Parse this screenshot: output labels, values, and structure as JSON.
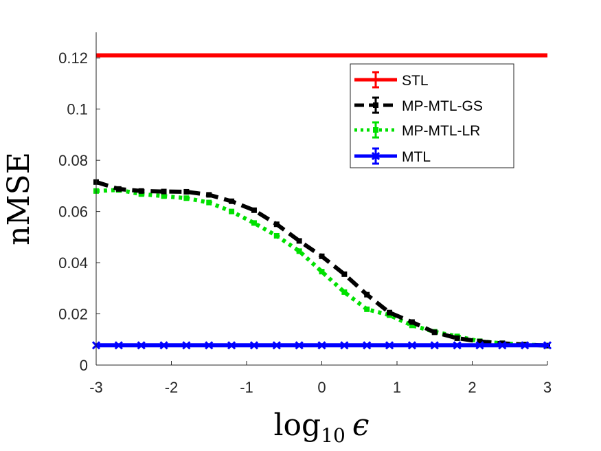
{
  "chart_data": {
    "type": "line",
    "title": "",
    "xlabel": "log10 ϵ",
    "xlabel_parts": {
      "base": "log",
      "sub": "10",
      "symbol": "ϵ"
    },
    "ylabel": "nMSE",
    "xlim": [
      -3,
      3
    ],
    "ylim": [
      0,
      0.13
    ],
    "xticks": [
      -3,
      -2,
      -1,
      0,
      1,
      2,
      3
    ],
    "xtick_labels": [
      "-3",
      "-2",
      "-1",
      "0",
      "1",
      "2",
      "3"
    ],
    "yticks": [
      0,
      0.02,
      0.04,
      0.06,
      0.08,
      0.1,
      0.12
    ],
    "ytick_labels": [
      "0",
      "0.02",
      "0.04",
      "0.06",
      "0.08",
      "0.1",
      "0.12"
    ],
    "grid": false,
    "legend_position": "top-right",
    "x": [
      -3,
      -2.7,
      -2.4,
      -2.1,
      -1.8,
      -1.5,
      -1.2,
      -0.9,
      -0.6,
      -0.3,
      0,
      0.3,
      0.6,
      0.9,
      1.2,
      1.5,
      1.8,
      2.1,
      2.4,
      2.7,
      3
    ],
    "series": [
      {
        "name": "STL",
        "color": "#ff0000",
        "style": "solid",
        "values": [
          0.121,
          0.121,
          0.121,
          0.121,
          0.121,
          0.121,
          0.121,
          0.121,
          0.121,
          0.121,
          0.121,
          0.121,
          0.121,
          0.121,
          0.121,
          0.121,
          0.121,
          0.121,
          0.121,
          0.121,
          0.121
        ]
      },
      {
        "name": "MP-MTL-GS",
        "color": "#000000",
        "style": "dashed",
        "values": [
          0.0715,
          0.0688,
          0.068,
          0.0678,
          0.0677,
          0.0665,
          0.064,
          0.0605,
          0.055,
          0.0485,
          0.0425,
          0.0355,
          0.0275,
          0.0205,
          0.0168,
          0.0128,
          0.0105,
          0.0092,
          0.0085,
          0.008,
          0.0076
        ]
      },
      {
        "name": "MP-MTL-LR",
        "color": "#00e000",
        "style": "dotted",
        "values": [
          0.068,
          0.0684,
          0.0668,
          0.066,
          0.0652,
          0.0635,
          0.06,
          0.0555,
          0.0505,
          0.0445,
          0.0365,
          0.0285,
          0.0218,
          0.0195,
          0.0155,
          0.013,
          0.0112,
          0.0093,
          0.0085,
          0.008,
          0.0076
        ]
      },
      {
        "name": "MTL",
        "color": "#0000ff",
        "style": "solid",
        "values": [
          0.0077,
          0.0077,
          0.0077,
          0.0077,
          0.0077,
          0.0077,
          0.0077,
          0.0077,
          0.0077,
          0.0077,
          0.0077,
          0.0077,
          0.0077,
          0.0077,
          0.0077,
          0.0077,
          0.0077,
          0.0077,
          0.0077,
          0.0077,
          0.0077
        ]
      }
    ]
  }
}
